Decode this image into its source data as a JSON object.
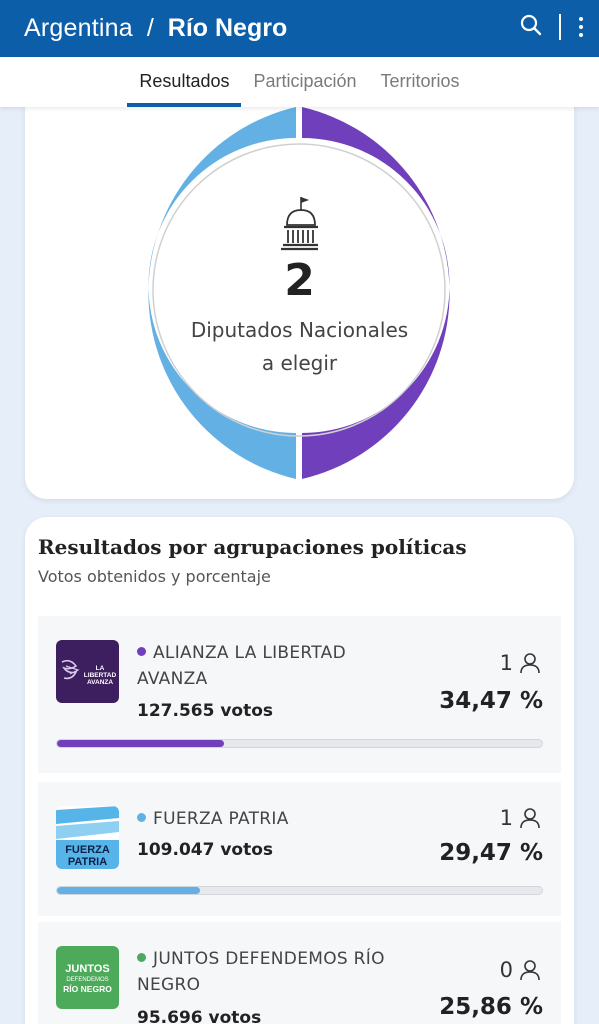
{
  "header": {
    "country": "Argentina",
    "separator": "/",
    "province": "Río Negro"
  },
  "tabs": [
    {
      "label": "Resultados",
      "active": true
    },
    {
      "label": "Participación",
      "active": false
    },
    {
      "label": "Territorios",
      "active": false
    }
  ],
  "summary": {
    "seats": "2",
    "label_line1": "Diputados Nacionales",
    "label_line2": "a elegir",
    "donut": [
      {
        "party": "ALIANZA LA LIBERTAD AVANZA",
        "seats": 1,
        "color": "#7040bc"
      },
      {
        "party": "FUERZA PATRIA",
        "seats": 1,
        "color": "#63b0e4"
      }
    ]
  },
  "results": {
    "title": "Resultados por agrupaciones políticas",
    "subtitle": "Votos obtenidos y porcentaje",
    "parties": [
      {
        "name_line1": "ALIANZA LA LIBERTAD",
        "name_line2": "AVANZA",
        "votes": "127.565 votos",
        "seats": "1",
        "percent": "34,47 %",
        "share": 34.47,
        "color": "#7040bc",
        "logo_text": [
          "LA",
          "LIBERTAD",
          "AVANZA"
        ]
      },
      {
        "name_line1": "FUERZA PATRIA",
        "votes": "109.047 votos",
        "seats": "1",
        "percent": "29,47 %",
        "share": 29.47,
        "color": "#63b0e4",
        "logo_text": [
          "FUERZA",
          "PATRIA"
        ]
      },
      {
        "name_line1": "JUNTOS DEFENDEMOS RÍO",
        "name_line2": "NEGRO",
        "votes": "95.696 votos",
        "seats": "0",
        "percent": "25,86 %",
        "share": 25.86,
        "color": "#4caa5a",
        "logo_text": [
          "JUNTOS",
          "DEFENDEMOS",
          "RÍO NEGRO"
        ]
      }
    ]
  }
}
